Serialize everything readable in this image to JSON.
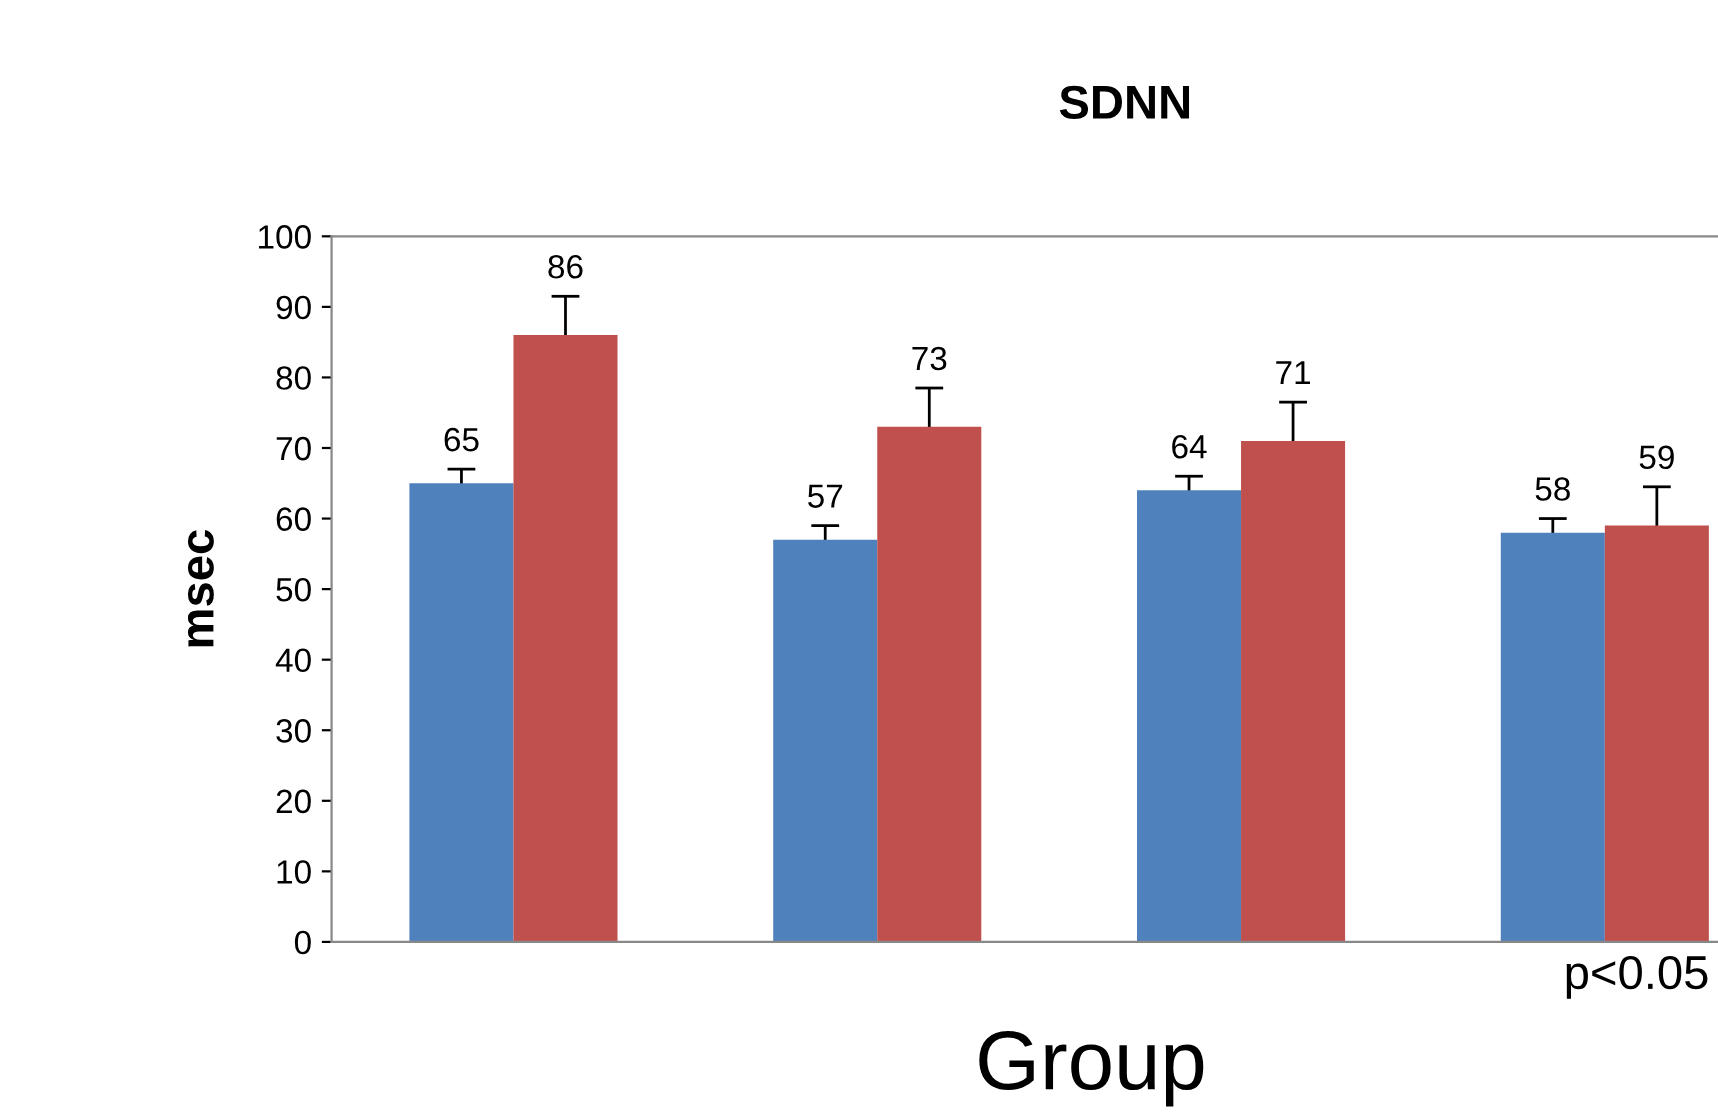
{
  "chart_data": {
    "type": "bar",
    "title": "SDNN",
    "xlabel": "Group",
    "ylabel": "msec",
    "categories": [
      null,
      null,
      null,
      null
    ],
    "series": [
      {
        "color": "#4f81bd",
        "values": [
          65,
          57,
          64,
          58
        ],
        "errors": [
          2,
          2,
          2,
          2
        ]
      },
      {
        "color": "#c0504d",
        "values": [
          86,
          73,
          71,
          59
        ],
        "errors": [
          5.5,
          5.5,
          5.5,
          5.5
        ]
      }
    ],
    "ylim": [
      0,
      100
    ],
    "yticks": [
      0,
      10,
      20,
      30,
      40,
      50,
      60,
      70,
      80,
      90,
      100
    ],
    "data_labels": true,
    "grid": false,
    "annotations": [
      "p<0.05"
    ]
  }
}
